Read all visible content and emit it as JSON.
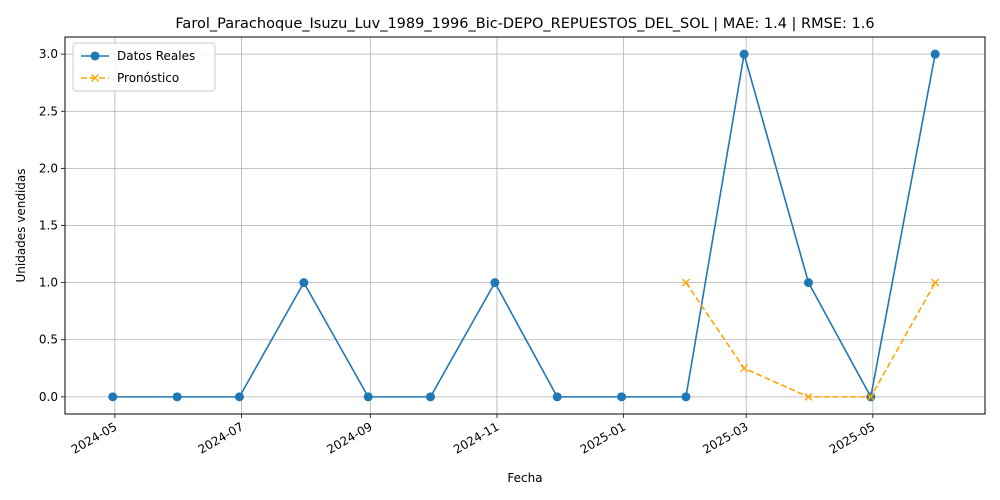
{
  "chart_data": {
    "type": "line",
    "title": "Farol_Parachoque_Isuzu_Luv_1989_1996_Bic-DEPO_REPUESTOS_DEL_SOL | MAE: 1.4 | RMSE: 1.6",
    "xlabel": "Fecha",
    "ylabel": "Unidades vendidas",
    "ylim": [
      -0.15,
      3.15
    ],
    "xlim": [
      "2024-04-07",
      "2025-06-24"
    ],
    "grid": true,
    "legend_position": "top-left",
    "x_ticks": [
      "2024-05",
      "2024-07",
      "2024-09",
      "2024-11",
      "2025-01",
      "2025-03",
      "2025-05"
    ],
    "x_tick_dates": [
      "2024-05-01",
      "2024-07-01",
      "2024-09-01",
      "2024-11-01",
      "2025-01-01",
      "2025-03-01",
      "2025-05-01"
    ],
    "y_ticks": [
      "0.0",
      "0.5",
      "1.0",
      "1.5",
      "2.0",
      "2.5",
      "3.0"
    ],
    "y_tick_values": [
      0,
      0.5,
      1.0,
      1.5,
      2.0,
      2.5,
      3.0
    ],
    "series": [
      {
        "name": "Datos Reales",
        "color": "#1f77b4",
        "style": "solid",
        "marker": "circle",
        "x": [
          "2024-04-30",
          "2024-05-31",
          "2024-06-30",
          "2024-07-31",
          "2024-08-31",
          "2024-09-30",
          "2024-10-31",
          "2024-11-30",
          "2024-12-31",
          "2025-01-31",
          "2025-02-28",
          "2025-03-31",
          "2025-04-30",
          "2025-05-31"
        ],
        "values": [
          0,
          0,
          0,
          1,
          0,
          0,
          1,
          0,
          0,
          0,
          3,
          1,
          0,
          3
        ]
      },
      {
        "name": "Pronóstico",
        "color": "#ffa500",
        "style": "dashed",
        "marker": "x",
        "x": [
          "2025-01-31",
          "2025-02-28",
          "2025-03-31",
          "2025-04-30",
          "2025-05-31"
        ],
        "values": [
          1.0,
          0.25,
          0,
          0,
          1.0
        ]
      }
    ]
  }
}
